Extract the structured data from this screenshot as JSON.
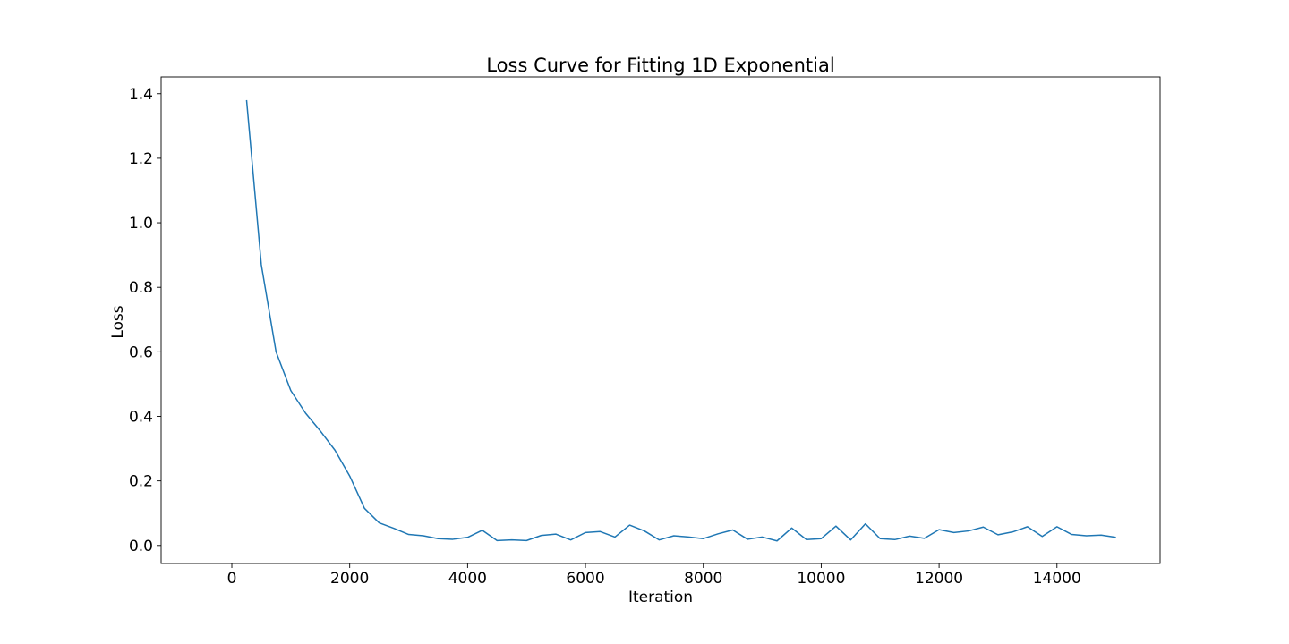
{
  "chart_data": {
    "type": "line",
    "title": "Loss Curve for Fitting 1D Exponential",
    "xlabel": "Iteration",
    "ylabel": "Loss",
    "xlim": [
      -1200,
      15750
    ],
    "ylim": [
      -0.056,
      1.452
    ],
    "xticks": [
      0,
      2000,
      4000,
      6000,
      8000,
      10000,
      12000,
      14000
    ],
    "xtick_labels": [
      "0",
      "2000",
      "4000",
      "6000",
      "8000",
      "10000",
      "12000",
      "14000"
    ],
    "yticks": [
      0.0,
      0.2,
      0.4,
      0.6,
      0.8,
      1.0,
      1.2,
      1.4
    ],
    "ytick_labels": [
      "0.0",
      "0.2",
      "0.4",
      "0.6",
      "0.8",
      "1.0",
      "1.2",
      "1.4"
    ],
    "grid": false,
    "line_color": "#1f77b4",
    "series": [
      {
        "x": [
          250,
          500,
          750,
          1000,
          1250,
          1500,
          1750,
          2000,
          2250,
          2500,
          2750,
          3000,
          3250,
          3500,
          3750,
          4000,
          4250,
          4500,
          4750,
          5000,
          5250,
          5500,
          5750,
          6000,
          6250,
          6500,
          6750,
          7000,
          7250,
          7500,
          7750,
          8000,
          8250,
          8500,
          8750,
          9000,
          9250,
          9500,
          9750,
          10000,
          10250,
          10500,
          10750,
          11000,
          11250,
          11500,
          11750,
          12000,
          12250,
          12500,
          12750,
          13000,
          13250,
          13500,
          13750,
          14000,
          14250,
          14500,
          14750,
          15000
        ],
        "y": [
          1.38,
          0.87,
          0.6,
          0.48,
          0.41,
          0.355,
          0.295,
          0.215,
          0.115,
          0.07,
          0.053,
          0.034,
          0.03,
          0.021,
          0.019,
          0.025,
          0.047,
          0.015,
          0.017,
          0.015,
          0.031,
          0.035,
          0.017,
          0.04,
          0.043,
          0.026,
          0.063,
          0.045,
          0.017,
          0.03,
          0.026,
          0.021,
          0.036,
          0.048,
          0.019,
          0.026,
          0.014,
          0.054,
          0.018,
          0.021,
          0.06,
          0.017,
          0.067,
          0.021,
          0.018,
          0.029,
          0.022,
          0.049,
          0.04,
          0.045,
          0.057,
          0.033,
          0.042,
          0.058,
          0.028,
          0.058,
          0.034,
          0.03,
          0.032,
          0.025
        ]
      }
    ]
  }
}
